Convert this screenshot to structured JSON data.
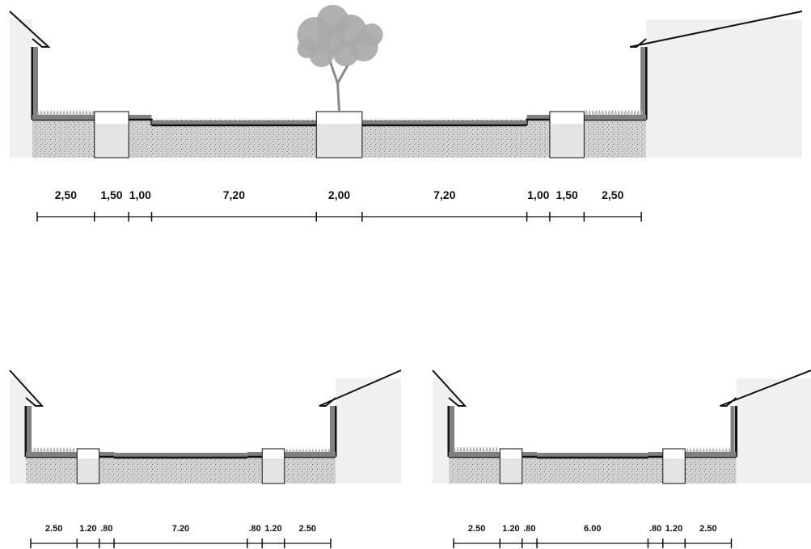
{
  "sections": [
    {
      "id": "top",
      "tree": true,
      "dims": [
        {
          "label": "2,50",
          "value": 2.5
        },
        {
          "label": "1,50",
          "value": 1.5
        },
        {
          "label": "1,00",
          "value": 1.0
        },
        {
          "label": "7,20",
          "value": 7.2
        },
        {
          "label": "2,00",
          "value": 2.0
        },
        {
          "label": "7,20",
          "value": 7.2
        },
        {
          "label": "1,00",
          "value": 1.0
        },
        {
          "label": "1,50",
          "value": 1.5
        },
        {
          "label": "2,50",
          "value": 2.5
        }
      ]
    },
    {
      "id": "bottom-left",
      "tree": false,
      "dims": [
        {
          "label": "2.50",
          "value": 2.5
        },
        {
          "label": "1.20",
          "value": 1.2
        },
        {
          "label": ".80",
          "value": 0.8
        },
        {
          "label": "7.20",
          "value": 7.2
        },
        {
          "label": ".80",
          "value": 0.8
        },
        {
          "label": "1.20",
          "value": 1.2
        },
        {
          "label": "2.50",
          "value": 2.5
        }
      ]
    },
    {
      "id": "bottom-right",
      "tree": false,
      "dims": [
        {
          "label": "2.50",
          "value": 2.5
        },
        {
          "label": "1.20",
          "value": 1.2
        },
        {
          "label": ".80",
          "value": 0.8
        },
        {
          "label": "6.00",
          "value": 6.0
        },
        {
          "label": ".80",
          "value": 0.8
        },
        {
          "label": "1.20",
          "value": 1.2
        },
        {
          "label": "2.50",
          "value": 2.5
        }
      ]
    }
  ],
  "colors": {
    "wall": "#f0f0f0",
    "outline": "#111111",
    "asphalt": "#808080",
    "soil": "#d6d6d6",
    "planter": "#e4e4e4",
    "grass": "#a6a6a6",
    "tree": "#a9a9a9",
    "trunk": "#8a8a8a"
  }
}
